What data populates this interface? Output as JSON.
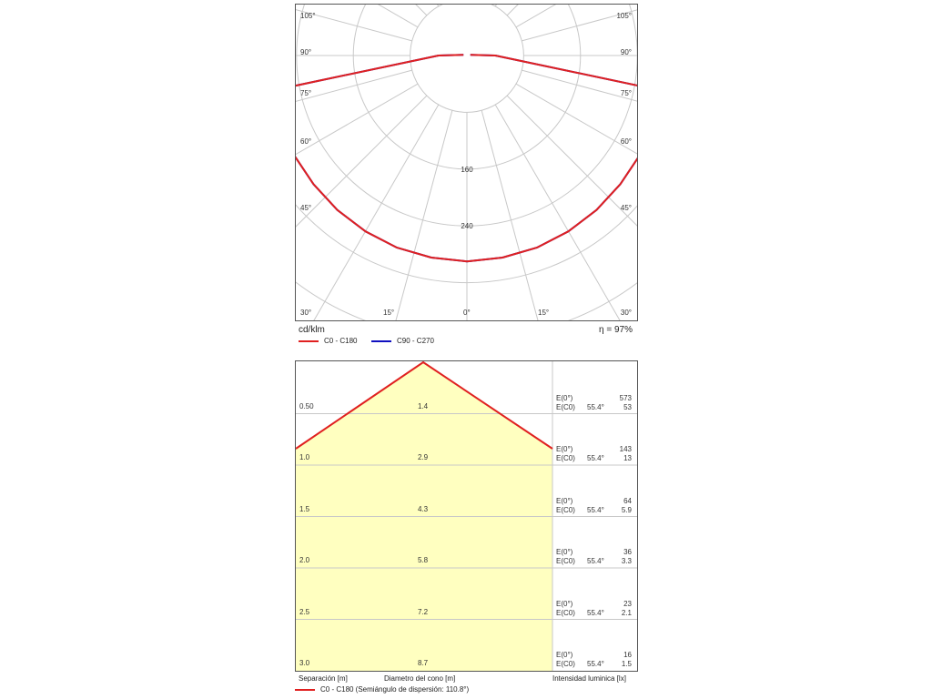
{
  "chart_data": [
    {
      "type": "polar",
      "angle_labels_left": [
        "105°",
        "90°",
        "75°",
        "60°",
        "45°",
        "30°",
        "15°"
      ],
      "angle_labels_right": [
        "105°",
        "90°",
        "75°",
        "60°",
        "45°",
        "30°",
        "15°"
      ],
      "angle_label_bottom": "0°",
      "radial_tick_labels": [
        "160",
        "240"
      ],
      "radial_tick_values": [
        160,
        240
      ],
      "radial_max": 320,
      "unit_label": "cd/klm",
      "efficiency_label": "η = 97%",
      "series": [
        {
          "name": "C0 - C180",
          "color": "#e02020",
          "angles": [
            0,
            10,
            20,
            30,
            40,
            50,
            60,
            70,
            80,
            90,
            100
          ],
          "values": [
            290,
            289,
            288,
            286,
            284,
            282,
            281,
            277,
            250,
            40,
            5
          ]
        },
        {
          "name": "C90 - C270",
          "color": "#1010c0",
          "angles": [
            0,
            10,
            20,
            30,
            40,
            50,
            60,
            70,
            80,
            90,
            100
          ],
          "values": [
            290,
            289,
            288,
            286,
            284,
            282,
            281,
            277,
            250,
            40,
            5
          ]
        }
      ]
    },
    {
      "type": "table",
      "legend_label": "C0 - C180 (Semiángulo de dispersión: 110.8°)",
      "line_color": "#e02020",
      "fill_color": "#ffffc0",
      "columns": [
        "Separación [m]",
        "Diametro del cono [m]",
        "Intensidad luminica [lx]"
      ],
      "rows": [
        {
          "distance": "0.50",
          "diameter": "1.4",
          "e0_label": "E(0°)",
          "e0": "573",
          "ec0_label": "E(C0)",
          "ec0_angle": "55.4°",
          "ec0": "53"
        },
        {
          "distance": "1.0",
          "diameter": "2.9",
          "e0_label": "E(0°)",
          "e0": "143",
          "ec0_label": "E(C0)",
          "ec0_angle": "55.4°",
          "ec0": "13"
        },
        {
          "distance": "1.5",
          "diameter": "4.3",
          "e0_label": "E(0°)",
          "e0": "64",
          "ec0_label": "E(C0)",
          "ec0_angle": "55.4°",
          "ec0": "5.9"
        },
        {
          "distance": "2.0",
          "diameter": "5.8",
          "e0_label": "E(0°)",
          "e0": "36",
          "ec0_label": "E(C0)",
          "ec0_angle": "55.4°",
          "ec0": "3.3"
        },
        {
          "distance": "2.5",
          "diameter": "7.2",
          "e0_label": "E(0°)",
          "e0": "23",
          "ec0_label": "E(C0)",
          "ec0_angle": "55.4°",
          "ec0": "2.1"
        },
        {
          "distance": "3.0",
          "diameter": "8.7",
          "e0_label": "E(0°)",
          "e0": "16",
          "ec0_label": "E(C0)",
          "ec0_angle": "55.4°",
          "ec0": "1.5"
        }
      ]
    }
  ]
}
